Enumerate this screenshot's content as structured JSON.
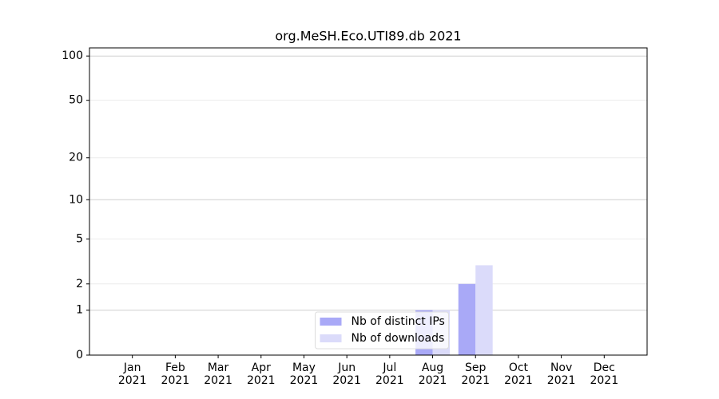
{
  "chart_data": {
    "type": "bar",
    "title": "org.MeSH.Eco.UTI89.db 2021",
    "categories": [
      "Jan\n2021",
      "Feb\n2021",
      "Mar\n2021",
      "Apr\n2021",
      "May\n2021",
      "Jun\n2021",
      "Jul\n2021",
      "Aug\n2021",
      "Sep\n2021",
      "Oct\n2021",
      "Nov\n2021",
      "Dec\n2021"
    ],
    "series": [
      {
        "name": "Nb of distinct IPs",
        "color": "#a9a9f7",
        "values": [
          0,
          0,
          0,
          0,
          0,
          0,
          0,
          1,
          2,
          0,
          0,
          0
        ]
      },
      {
        "name": "Nb of downloads",
        "color": "#dbdbfa",
        "values": [
          0,
          0,
          0,
          0,
          0,
          0,
          0,
          1,
          3,
          0,
          0,
          0
        ]
      }
    ],
    "yscale": "log1p",
    "ylim": [
      0,
      113.5
    ],
    "yticks": [
      0,
      1,
      2,
      5,
      10,
      20,
      50,
      100
    ],
    "grid": true,
    "legend": "lower center"
  }
}
